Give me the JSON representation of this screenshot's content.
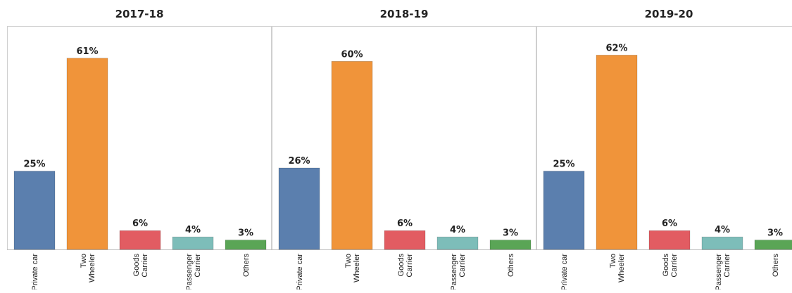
{
  "chart_data": {
    "type": "bar",
    "categories": [
      "Private car",
      "Two Wheeler",
      "Goods Carrier",
      "Passenger Carrier",
      "Others"
    ],
    "category_lines": [
      [
        "Private car"
      ],
      [
        "Two",
        "Wheeler"
      ],
      [
        "Goods",
        "Carrier"
      ],
      [
        "Passenger",
        "Carrier"
      ],
      [
        "Others"
      ]
    ],
    "colors": [
      "#5b7fae",
      "#f0943a",
      "#e25c62",
      "#7dbdb9",
      "#5aa556"
    ],
    "ylim": [
      0,
      65
    ],
    "panels": [
      {
        "title": "2017-18",
        "values": [
          25,
          61,
          6,
          4,
          3
        ],
        "labels": [
          "25%",
          "61%",
          "6%",
          "4%",
          "3%"
        ]
      },
      {
        "title": "2018-19",
        "values": [
          26,
          60,
          6,
          4,
          3
        ],
        "labels": [
          "26%",
          "60%",
          "6%",
          "4%",
          "3%"
        ]
      },
      {
        "title": "2019-20",
        "values": [
          25,
          62,
          6,
          4,
          3
        ],
        "labels": [
          "25%",
          "62%",
          "6%",
          "4%",
          "3%"
        ]
      }
    ]
  }
}
